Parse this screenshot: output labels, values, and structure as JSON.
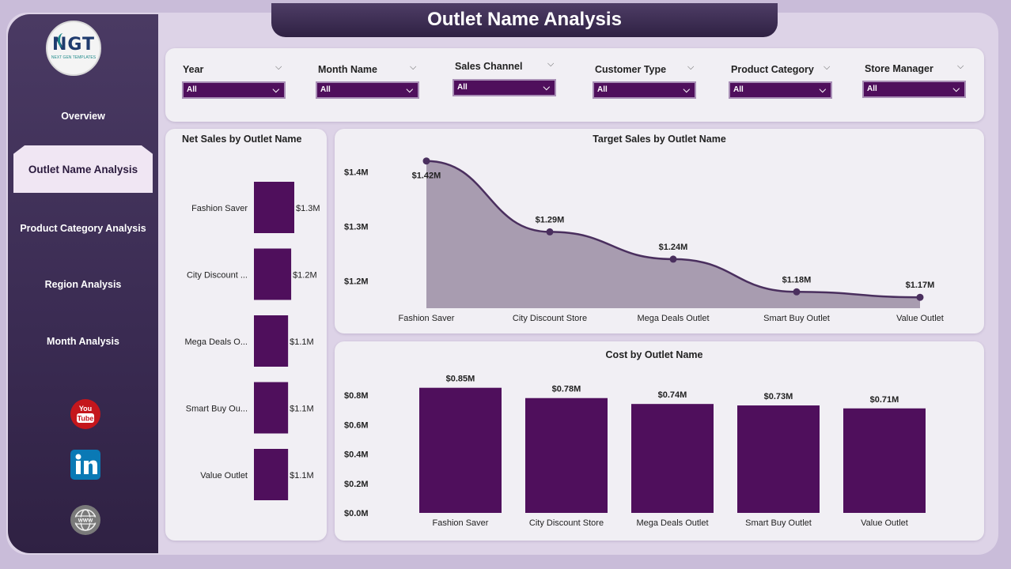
{
  "app": {
    "title": "Outlet Name Analysis"
  },
  "logo": {
    "text": "NGT",
    "subtext": "NEXT GEN TEMPLATES"
  },
  "nav": {
    "items": [
      {
        "label": "Overview"
      },
      {
        "label": "Outlet Name Analysis",
        "active": true
      },
      {
        "label": "Product Category Analysis"
      },
      {
        "label": "Region Analysis"
      },
      {
        "label": "Month Analysis"
      }
    ]
  },
  "social": {
    "icons": [
      "youtube-icon",
      "linkedin-icon",
      "website-globe-icon"
    ]
  },
  "filters": [
    {
      "label": "Year",
      "value": "All"
    },
    {
      "label": "Month Name",
      "value": "All"
    },
    {
      "label": "Sales Channel",
      "value": "All"
    },
    {
      "label": "Customer Type",
      "value": "All"
    },
    {
      "label": "Product Category",
      "value": "All"
    },
    {
      "label": "Store Manager",
      "value": "All"
    }
  ],
  "colors": {
    "accent": "#4f0f5c",
    "sidebar": "#3a2b52",
    "area_fill": "#a89cb0",
    "line": "#4a2f5e"
  },
  "chart_data": [
    {
      "type": "bar",
      "orientation": "horizontal",
      "title": "Net Sales by Outlet Name",
      "categories": [
        "Fashion Saver",
        "City Discount ...",
        "Mega Deals O...",
        "Smart Buy Ou...",
        "Value Outlet"
      ],
      "values": [
        1.3,
        1.2,
        1.1,
        1.1,
        1.1
      ],
      "data_labels": [
        "$1.3M",
        "$1.2M",
        "$1.1M",
        "$1.1M",
        "$1.1M"
      ],
      "unit": "$M"
    },
    {
      "type": "area",
      "title": "Target Sales by Outlet Name",
      "categories": [
        "Fashion Saver",
        "City Discount Store",
        "Mega Deals Outlet",
        "Smart Buy Outlet",
        "Value Outlet"
      ],
      "values": [
        1.42,
        1.29,
        1.24,
        1.18,
        1.17
      ],
      "data_labels": [
        "$1.42M",
        "$1.29M",
        "$1.24M",
        "$1.18M",
        "$1.17M"
      ],
      "y_ticks": [
        "$1.2M",
        "$1.3M",
        "$1.4M"
      ],
      "ylim": [
        1.15,
        1.45
      ],
      "unit": "$M"
    },
    {
      "type": "bar",
      "title": "Cost by Outlet Name",
      "categories": [
        "Fashion Saver",
        "City Discount Store",
        "Mega Deals Outlet",
        "Smart Buy Outlet",
        "Value Outlet"
      ],
      "values": [
        0.85,
        0.78,
        0.74,
        0.73,
        0.71
      ],
      "data_labels": [
        "$0.85M",
        "$0.78M",
        "$0.74M",
        "$0.73M",
        "$0.71M"
      ],
      "y_ticks": [
        "$0.0M",
        "$0.2M",
        "$0.4M",
        "$0.6M",
        "$0.8M"
      ],
      "ylim": [
        0,
        0.8
      ],
      "unit": "$M"
    }
  ]
}
